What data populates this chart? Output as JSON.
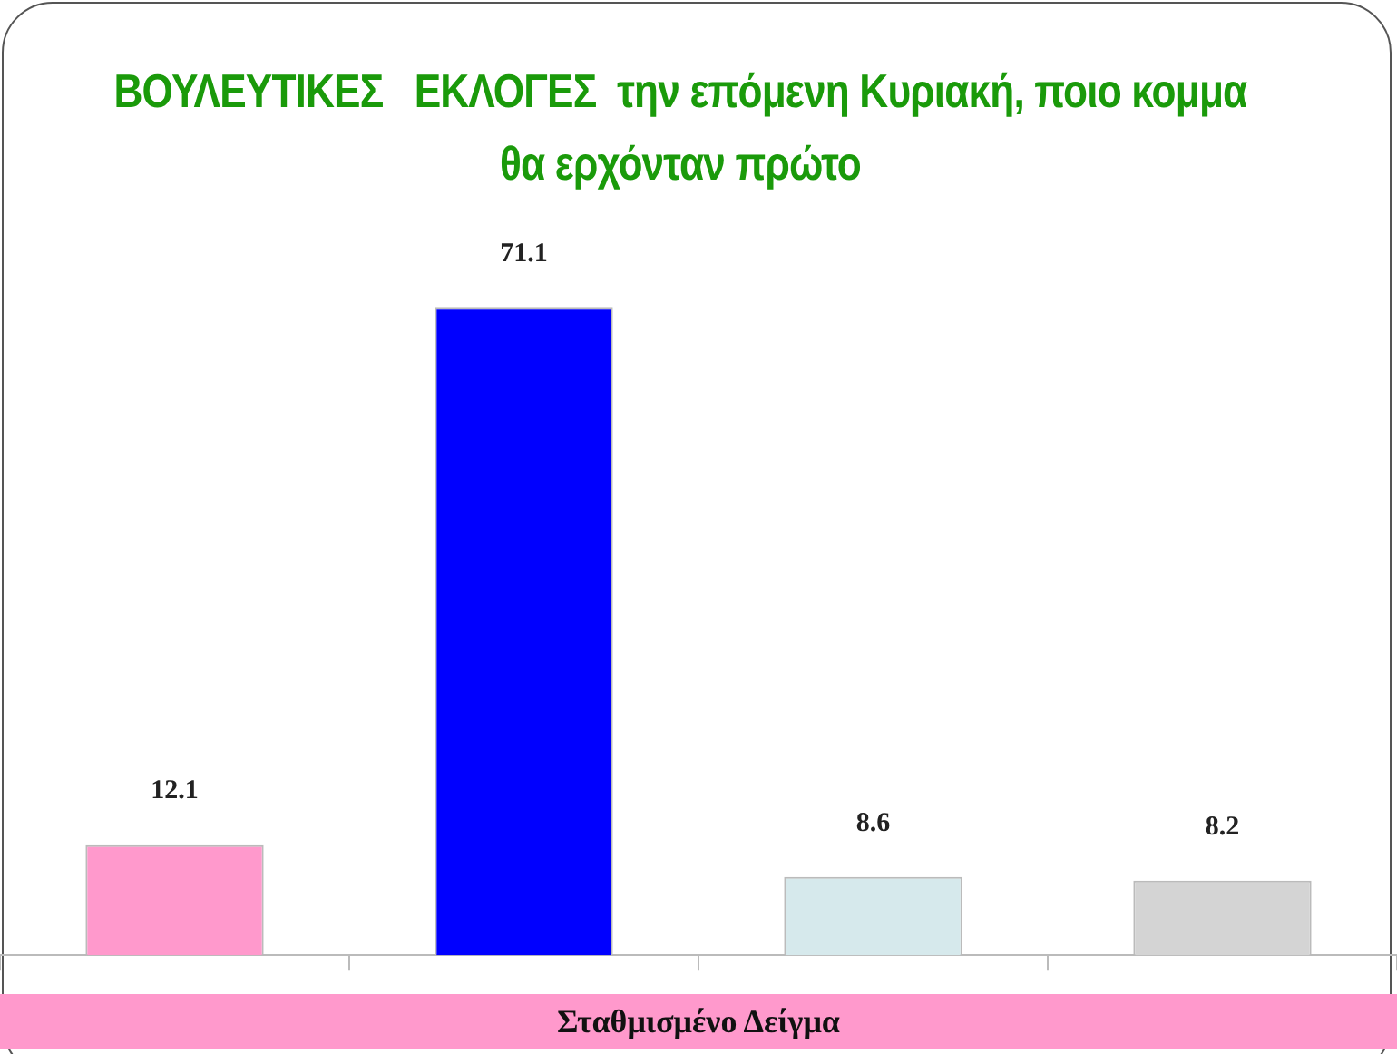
{
  "chart_data": {
    "type": "bar",
    "title": "ΒΟΥΛΕΥΤΙΚΕΣ   ΕΚΛΟΓΕΣ  την επόμενη Κυριακή, ποιο κομμα θα ερχόνταν πρώτο",
    "categories": [
      null,
      null,
      null,
      null
    ],
    "values": [
      12.1,
      71.1,
      8.6,
      8.2
    ],
    "colors": [
      "#ff99cc",
      "#0000ff",
      "#d6e9ec",
      "#d4d4d4"
    ],
    "data_labels": true,
    "legend": false,
    "grid": false,
    "annotations": [
      "Σταθμισμένο Δείγμα"
    ]
  }
}
